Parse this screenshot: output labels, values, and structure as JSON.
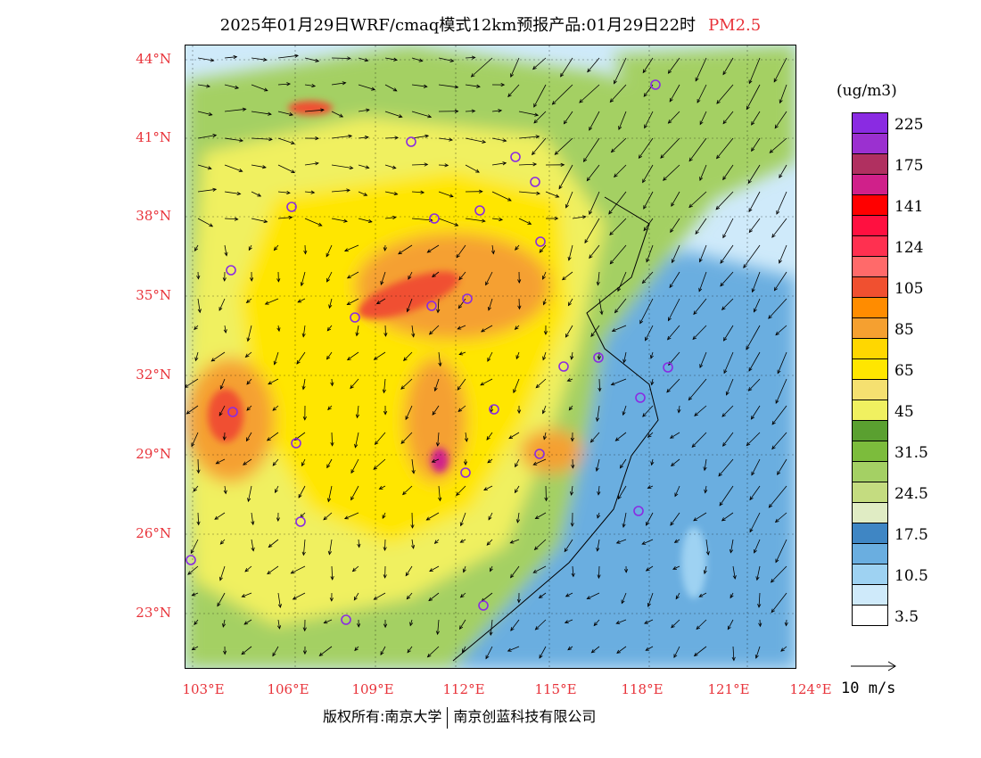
{
  "header": {
    "title": "2025年01月29日WRF/cmaq模式12km预报产品:01月29日22时",
    "pollutant": "PM2.5"
  },
  "map": {
    "lat_labels": [
      "44°N",
      "41°N",
      "38°N",
      "35°N",
      "32°N",
      "29°N",
      "26°N",
      "23°N"
    ],
    "lon_labels": [
      "103°E",
      "106°E",
      "109°E",
      "112°E",
      "115°E",
      "118°E",
      "121°E",
      "124°E"
    ],
    "region": "Central and Eastern China",
    "valid_time": "01月29日22时"
  },
  "legend": {
    "units": "(ug/m3)",
    "levels": [
      {
        "label": "225",
        "color": "#8a2be2"
      },
      {
        "label": "",
        "color": "#9b30d0"
      },
      {
        "label": "175",
        "color": "#b03060"
      },
      {
        "label": "",
        "color": "#d0208a"
      },
      {
        "label": "141",
        "color": "#ff0000"
      },
      {
        "label": "",
        "color": "#ff1040"
      },
      {
        "label": "124",
        "color": "#ff3050"
      },
      {
        "label": "",
        "color": "#ff6a6a"
      },
      {
        "label": "105",
        "color": "#f05030"
      },
      {
        "label": "",
        "color": "#ff8c00"
      },
      {
        "label": "85",
        "color": "#f5a030"
      },
      {
        "label": "",
        "color": "#ffd700"
      },
      {
        "label": "65",
        "color": "#ffe600"
      },
      {
        "label": "",
        "color": "#f5e070"
      },
      {
        "label": "45",
        "color": "#f0f060"
      },
      {
        "label": "",
        "color": "#5aa030"
      },
      {
        "label": "31.5",
        "color": "#7cbc3c"
      },
      {
        "label": "",
        "color": "#a4d064"
      },
      {
        "label": "24.5",
        "color": "#c4dc80"
      },
      {
        "label": "",
        "color": "#e0ecc4"
      },
      {
        "label": "17.5",
        "color": "#3f86c4"
      },
      {
        "label": "",
        "color": "#6aaee0"
      },
      {
        "label": "10.5",
        "color": "#9ed2f2"
      },
      {
        "label": "",
        "color": "#cfeafa"
      },
      {
        "label": "3.5",
        "color": "#ffffff"
      }
    ]
  },
  "wind_reference": {
    "label": "10 m/s"
  },
  "footer": {
    "copyright_left": "版权所有:南京大学",
    "copyright_right": "南京创蓝科技有限公司"
  }
}
